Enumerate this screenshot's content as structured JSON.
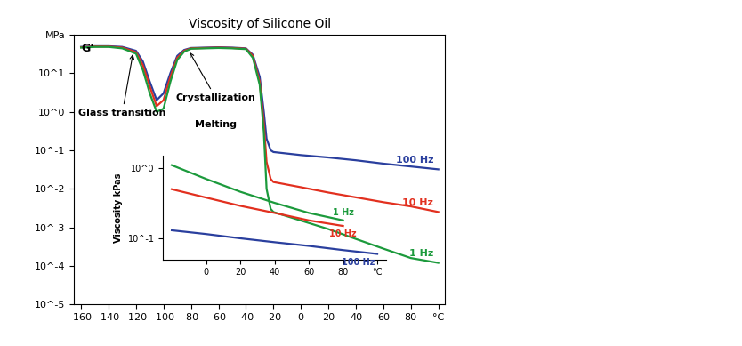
{
  "chart_data": [
    {
      "type": "line",
      "title": "Viscosity of Silicone Oil",
      "ylabel": "G'",
      "log": "y",
      "grid": false,
      "x": [
        -160,
        -150,
        -140,
        -130,
        -120,
        -115,
        -110,
        -105,
        -100,
        -95,
        -90,
        -85,
        -80,
        -70,
        -60,
        -50,
        -40,
        -35,
        -30,
        -27,
        -25,
        -22,
        -20,
        0,
        20,
        40,
        60,
        80,
        100
      ],
      "series": [
        {
          "name": "100 Hz",
          "color": "#2a3f9e",
          "values": [
            48,
            50,
            50,
            48,
            38,
            20,
            6,
            2.0,
            3,
            10,
            28,
            40,
            45,
            46,
            47,
            46,
            44,
            30,
            8,
            1.0,
            0.2,
            0.1,
            0.09,
            0.075,
            0.065,
            0.055,
            0.045,
            0.038,
            0.032
          ]
        },
        {
          "name": "10 Hz",
          "color": "#e2301f",
          "values": [
            47,
            49,
            49,
            46,
            35,
            16,
            4.5,
            1.4,
            2,
            8,
            25,
            38,
            44,
            45,
            46,
            45,
            43,
            28,
            6,
            0.5,
            0.05,
            0.018,
            0.015,
            0.011,
            0.008,
            0.006,
            0.0045,
            0.0035,
            0.0025
          ]
        },
        {
          "name": "1 Hz",
          "color": "#1c9a3c",
          "values": [
            46,
            48,
            48,
            44,
            32,
            12,
            3,
            1.0,
            1.2,
            6,
            22,
            36,
            43,
            44,
            45,
            44,
            42,
            25,
            5,
            0.3,
            0.01,
            0.003,
            0.0025,
            0.0015,
            0.0009,
            0.0005,
            0.00028,
            0.00016,
            0.00012
          ]
        }
      ],
      "xlim": [
        -165,
        105
      ],
      "xticks": [
        -160,
        -140,
        -120,
        -100,
        -80,
        -60,
        -40,
        -20,
        0,
        20,
        40,
        60,
        80,
        {
          "value": 100,
          "label": "°C"
        }
      ],
      "ylim": [
        1e-05,
        100
      ],
      "yticks": [
        {
          "value": 100,
          "label": "MPa"
        },
        {
          "value": 10,
          "label": "10^1"
        },
        {
          "value": 1,
          "label": "10^0"
        },
        {
          "value": 0.1,
          "label": "10^-1"
        },
        {
          "value": 0.01,
          "label": "10^-2"
        },
        {
          "value": 0.001,
          "label": "10^-3"
        },
        {
          "value": 0.0001,
          "label": "10^-4"
        },
        {
          "value": 1e-05,
          "label": "10^-5"
        }
      ],
      "annotations": [
        {
          "text": "Glass transition",
          "x": -130,
          "y": 1.2,
          "arrow_to": [
            -122,
            36
          ]
        },
        {
          "text": "Crystallization",
          "x": -62,
          "y": 3,
          "arrow_to": [
            -82,
            40
          ]
        },
        {
          "text": "Melting",
          "x": -62,
          "y": 0.6
        }
      ]
    },
    {
      "type": "line",
      "ylabel": "Viscosity kPas",
      "log": "y",
      "grid": false,
      "x": [
        -20,
        0,
        20,
        40,
        60,
        80,
        100
      ],
      "series": [
        {
          "name": "100 Hz",
          "color": "#2a3f9e",
          "values": [
            0.13,
            0.115,
            0.1,
            0.088,
            0.078,
            0.068,
            0.06
          ]
        },
        {
          "name": "10 Hz",
          "color": "#e2301f",
          "values": [
            0.5,
            0.38,
            0.29,
            0.23,
            0.18,
            0.15,
            null
          ]
        },
        {
          "name": "1 Hz",
          "color": "#1c9a3c",
          "values": [
            1.1,
            0.7,
            0.46,
            0.32,
            0.23,
            0.18,
            null
          ]
        }
      ],
      "xlim": [
        -25,
        105
      ],
      "xticks": [
        0,
        20,
        40,
        60,
        80,
        {
          "value": 100,
          "label": "°C"
        }
      ],
      "ylim": [
        0.05,
        1.5
      ],
      "yticks": [
        {
          "value": 1,
          "label": "10^0"
        },
        {
          "value": 0.1,
          "label": "10^-1"
        }
      ]
    }
  ]
}
